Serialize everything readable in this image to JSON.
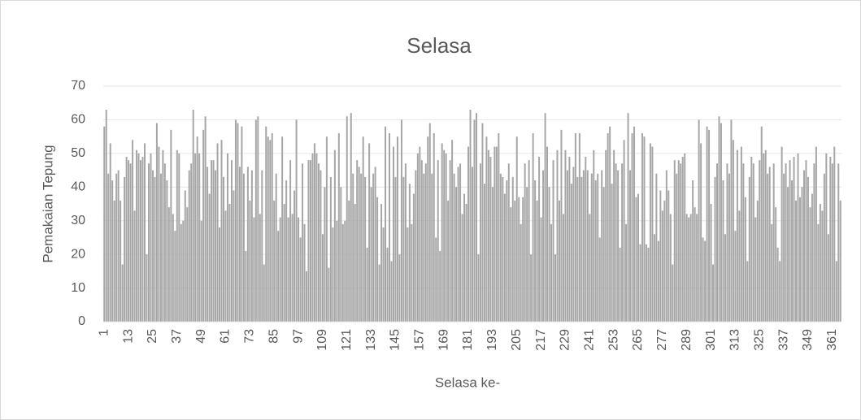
{
  "chart_data": {
    "type": "bar",
    "title": "Selasa",
    "x_label": "Selasa ke-",
    "y_label": "Pemakaian Tepung",
    "color": "#a6a6a6",
    "grid": true,
    "ylim": [
      0,
      70
    ],
    "yticks": [
      0,
      10,
      20,
      30,
      40,
      50,
      60,
      70
    ],
    "categories": [
      1,
      null,
      null,
      null,
      null,
      null,
      null,
      null,
      null,
      null,
      null,
      null,
      13,
      null,
      null,
      null,
      null,
      null,
      null,
      null,
      null,
      null,
      null,
      null,
      25,
      null,
      null,
      null,
      null,
      null,
      null,
      null,
      null,
      null,
      null,
      null,
      37,
      null,
      null,
      null,
      null,
      null,
      null,
      null,
      null,
      null,
      null,
      null,
      49,
      null,
      null,
      null,
      null,
      null,
      null,
      null,
      null,
      null,
      null,
      null,
      61,
      null,
      null,
      null,
      null,
      null,
      null,
      null,
      null,
      null,
      null,
      null,
      73,
      null,
      null,
      null,
      null,
      null,
      null,
      null,
      null,
      null,
      null,
      null,
      85,
      null,
      null,
      null,
      null,
      null,
      null,
      null,
      null,
      null,
      null,
      null,
      97,
      null,
      null,
      null,
      null,
      null,
      null,
      null,
      null,
      null,
      null,
      null,
      109,
      null,
      null,
      null,
      null,
      null,
      null,
      null,
      null,
      null,
      null,
      null,
      121,
      null,
      null,
      null,
      null,
      null,
      null,
      null,
      null,
      null,
      null,
      null,
      133,
      null,
      null,
      null,
      null,
      null,
      null,
      null,
      null,
      null,
      null,
      null,
      145,
      null,
      null,
      null,
      null,
      null,
      null,
      null,
      null,
      null,
      null,
      null,
      157,
      null,
      null,
      null,
      null,
      null,
      null,
      null,
      null,
      null,
      null,
      null,
      169,
      null,
      null,
      null,
      null,
      null,
      null,
      null,
      null,
      null,
      null,
      null,
      181,
      null,
      null,
      null,
      null,
      null,
      null,
      null,
      null,
      null,
      null,
      null,
      193,
      null,
      null,
      null,
      null,
      null,
      null,
      null,
      null,
      null,
      null,
      null,
      205,
      null,
      null,
      null,
      null,
      null,
      null,
      null,
      null,
      null,
      null,
      null,
      217,
      null,
      null,
      null,
      null,
      null,
      null,
      null,
      null,
      null,
      null,
      null,
      229,
      null,
      null,
      null,
      null,
      null,
      null,
      null,
      null,
      null,
      null,
      null,
      241,
      null,
      null,
      null,
      null,
      null,
      null,
      null,
      null,
      null,
      null,
      null,
      253,
      null,
      null,
      null,
      null,
      null,
      null,
      null,
      null,
      null,
      null,
      null,
      265,
      null,
      null,
      null,
      null,
      null,
      null,
      null,
      null,
      null,
      null,
      null,
      277,
      null,
      null,
      null,
      null,
      null,
      null,
      null,
      null,
      null,
      null,
      null,
      289,
      null,
      null,
      null,
      null,
      null,
      null,
      null,
      null,
      null,
      null,
      null,
      301,
      null,
      null,
      null,
      null,
      null,
      null,
      null,
      null,
      null,
      null,
      null,
      313,
      null,
      null,
      null,
      null,
      null,
      null,
      null,
      null,
      null,
      null,
      null,
      325,
      null,
      null,
      null,
      null,
      null,
      null,
      null,
      null,
      null,
      null,
      null,
      337,
      null,
      null,
      null,
      null,
      null,
      null,
      null,
      null,
      null,
      null,
      null,
      349,
      null,
      null,
      null,
      null,
      null,
      null,
      null,
      null,
      null,
      null,
      null,
      361,
      null,
      null,
      null,
      null
    ],
    "values": [
      58,
      63,
      44,
      53,
      42,
      36,
      44,
      45,
      36,
      17,
      43,
      49,
      48,
      47,
      54,
      33,
      51,
      50,
      48,
      49,
      53,
      20,
      47,
      50,
      45,
      43,
      59,
      52,
      44,
      51,
      47,
      42,
      34,
      57,
      32,
      27,
      51,
      50,
      29,
      30,
      39,
      34,
      45,
      47,
      63,
      50,
      55,
      50,
      30,
      57,
      61,
      46,
      38,
      48,
      48,
      45,
      53,
      28,
      54,
      43,
      33,
      50,
      35,
      48,
      39,
      60,
      59,
      46,
      58,
      44,
      21,
      46,
      36,
      45,
      31,
      60,
      61,
      32,
      45,
      17,
      58,
      55,
      54,
      56,
      36,
      44,
      27,
      31,
      55,
      35,
      42,
      31,
      48,
      32,
      39,
      60,
      31,
      25,
      47,
      29,
      15,
      48,
      48,
      50,
      53,
      50,
      47,
      45,
      26,
      40,
      55,
      16,
      43,
      28,
      51,
      30,
      56,
      40,
      29,
      30,
      61,
      36,
      62,
      44,
      35,
      48,
      46,
      44,
      55,
      43,
      22,
      53,
      40,
      44,
      46,
      37,
      17,
      35,
      28,
      58,
      22,
      56,
      18,
      52,
      43,
      55,
      20,
      60,
      43,
      47,
      28,
      41,
      29,
      38,
      45,
      50,
      52,
      48,
      44,
      47,
      55,
      59,
      44,
      56,
      25,
      48,
      21,
      53,
      51,
      50,
      36,
      48,
      54,
      44,
      40,
      46,
      47,
      32,
      38,
      35,
      52,
      63,
      46,
      60,
      62,
      20,
      47,
      59,
      41,
      55,
      51,
      49,
      40,
      52,
      52,
      56,
      44,
      43,
      38,
      42,
      47,
      34,
      43,
      36,
      55,
      37,
      29,
      37,
      47,
      40,
      48,
      20,
      56,
      42,
      36,
      49,
      31,
      45,
      62,
      52,
      40,
      29,
      48,
      20,
      51,
      36,
      57,
      32,
      51,
      45,
      49,
      41,
      46,
      56,
      43,
      56,
      43,
      45,
      49,
      45,
      32,
      44,
      51,
      42,
      44,
      25,
      45,
      40,
      51,
      56,
      58,
      41,
      51,
      47,
      45,
      22,
      47,
      54,
      29,
      62,
      45,
      56,
      58,
      37,
      38,
      23,
      56,
      55,
      23,
      22,
      53,
      52,
      26,
      44,
      24,
      39,
      33,
      36,
      45,
      39,
      32,
      17,
      48,
      44,
      48,
      47,
      49,
      50,
      32,
      31,
      32,
      42,
      34,
      32,
      60,
      53,
      25,
      24,
      58,
      57,
      35,
      17,
      43,
      47,
      61,
      59,
      42,
      26,
      47,
      44,
      60,
      54,
      27,
      51,
      33,
      52,
      47,
      37,
      18,
      43,
      49,
      47,
      31,
      36,
      48,
      58,
      50,
      51,
      44,
      46,
      29,
      47,
      34,
      22,
      18,
      52,
      44,
      47,
      40,
      48,
      42,
      49,
      36,
      50,
      37,
      40,
      45,
      48,
      43,
      34,
      38,
      47,
      52,
      29,
      35,
      33,
      44,
      50,
      26,
      49,
      47,
      52,
      18,
      47,
      36
    ]
  }
}
